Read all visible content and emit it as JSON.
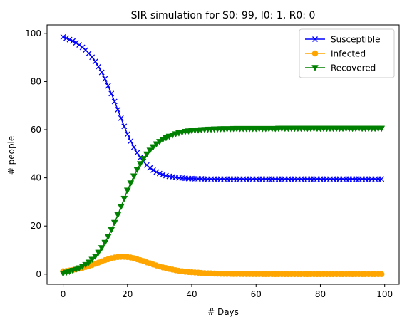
{
  "chart_data": {
    "type": "line",
    "title": "SIR simulation for S0: 99, I0: 1, R0: 0",
    "xlabel": "# Days",
    "ylabel": "# people",
    "xlim": [
      -5,
      104.5
    ],
    "ylim": [
      -4.2,
      103.5
    ],
    "xticks": [
      0,
      20,
      40,
      60,
      80,
      100
    ],
    "yticks": [
      0,
      20,
      40,
      60,
      80,
      100
    ],
    "grid": false,
    "legend_position": "top-right",
    "x": [
      0,
      1,
      2,
      3,
      4,
      5,
      6,
      7,
      8,
      9,
      10,
      11,
      12,
      13,
      14,
      15,
      16,
      17,
      18,
      19,
      20,
      21,
      22,
      23,
      24,
      25,
      26,
      27,
      28,
      29,
      30,
      31,
      32,
      33,
      34,
      35,
      36,
      37,
      38,
      39,
      40,
      41,
      42,
      43,
      44,
      45,
      46,
      47,
      48,
      49,
      50,
      51,
      52,
      53,
      54,
      55,
      56,
      57,
      58,
      59,
      60,
      61,
      62,
      63,
      64,
      65,
      66,
      67,
      68,
      69,
      70,
      71,
      72,
      73,
      74,
      75,
      76,
      77,
      78,
      79,
      80,
      81,
      82,
      83,
      84,
      85,
      86,
      87,
      88,
      89,
      90,
      91,
      92,
      93,
      94,
      95,
      96,
      97,
      98,
      99
    ],
    "series": [
      {
        "name": "Susceptible",
        "color": "#0000ff",
        "marker": "x",
        "values": [
          98.5,
          98.0,
          97.4,
          96.8,
          96.1,
          95.2,
          94.2,
          93.1,
          91.7,
          90.1,
          88.3,
          86.2,
          83.8,
          81.1,
          78.2,
          75.0,
          71.7,
          68.3,
          64.8,
          61.4,
          58.1,
          55.3,
          52.7,
          50.4,
          48.4,
          46.7,
          45.3,
          44.1,
          43.2,
          42.4,
          41.8,
          41.3,
          40.9,
          40.6,
          40.4,
          40.2,
          40.0,
          39.9,
          39.8,
          39.7,
          39.7,
          39.6,
          39.6,
          39.6,
          39.5,
          39.5,
          39.5,
          39.5,
          39.5,
          39.5,
          39.5,
          39.5,
          39.5,
          39.5,
          39.5,
          39.5,
          39.5,
          39.5,
          39.5,
          39.5,
          39.5,
          39.5,
          39.5,
          39.5,
          39.5,
          39.5,
          39.5,
          39.5,
          39.5,
          39.5,
          39.5,
          39.5,
          39.5,
          39.5,
          39.5,
          39.5,
          39.5,
          39.5,
          39.5,
          39.5,
          39.5,
          39.5,
          39.5,
          39.5,
          39.5,
          39.5,
          39.5,
          39.5,
          39.5,
          39.5,
          39.5,
          39.5,
          39.5,
          39.5,
          39.5,
          39.5,
          39.5,
          39.5,
          39.5,
          39.5
        ]
      },
      {
        "name": "Infected",
        "color": "#ffa500",
        "marker": "o",
        "values": [
          1.2,
          1.3,
          1.5,
          1.7,
          2.0,
          2.3,
          2.6,
          3.0,
          3.4,
          3.8,
          4.3,
          4.8,
          5.3,
          5.8,
          6.2,
          6.6,
          6.9,
          7.1,
          7.2,
          7.2,
          7.1,
          6.9,
          6.6,
          6.2,
          5.8,
          5.4,
          4.9,
          4.5,
          4.0,
          3.6,
          3.2,
          2.8,
          2.5,
          2.2,
          1.9,
          1.6,
          1.4,
          1.2,
          1.0,
          0.9,
          0.8,
          0.7,
          0.6,
          0.5,
          0.4,
          0.35,
          0.3,
          0.25,
          0.2,
          0.18,
          0.15,
          0.13,
          0.11,
          0.09,
          0.08,
          0.07,
          0.06,
          0.05,
          0.04,
          0.04,
          0.03,
          0.03,
          0.02,
          0.02,
          0.02,
          0.01,
          0.01,
          0.01,
          0.01,
          0.01,
          0,
          0,
          0,
          0,
          0,
          0,
          0,
          0,
          0,
          0,
          0,
          0,
          0,
          0,
          0,
          0,
          0,
          0,
          0,
          0,
          0,
          0,
          0,
          0,
          0,
          0,
          0,
          0,
          0,
          0
        ]
      },
      {
        "name": "Recovered",
        "color": "#008000",
        "marker": "v",
        "values": [
          0.3,
          0.7,
          1.1,
          1.5,
          1.9,
          2.5,
          3.2,
          3.9,
          4.9,
          6.1,
          7.4,
          9.0,
          10.9,
          13.1,
          15.6,
          18.4,
          21.4,
          24.6,
          28.0,
          31.4,
          34.8,
          37.8,
          40.7,
          43.4,
          45.8,
          47.9,
          49.8,
          51.4,
          52.8,
          54.0,
          55.0,
          55.9,
          56.6,
          57.2,
          57.7,
          58.2,
          58.6,
          58.9,
          59.2,
          59.4,
          59.6,
          59.7,
          59.8,
          59.9,
          60.0,
          60.1,
          60.1,
          60.2,
          60.2,
          60.3,
          60.3,
          60.3,
          60.3,
          60.4,
          60.4,
          60.4,
          60.4,
          60.4,
          60.4,
          60.4,
          60.4,
          60.4,
          60.4,
          60.4,
          60.4,
          60.4,
          60.4,
          60.5,
          60.5,
          60.5,
          60.5,
          60.5,
          60.5,
          60.5,
          60.5,
          60.5,
          60.5,
          60.5,
          60.5,
          60.5,
          60.5,
          60.5,
          60.5,
          60.5,
          60.5,
          60.5,
          60.5,
          60.5,
          60.5,
          60.5,
          60.5,
          60.5,
          60.5,
          60.5,
          60.5,
          60.5,
          60.5,
          60.5,
          60.5,
          60.5
        ]
      }
    ]
  }
}
